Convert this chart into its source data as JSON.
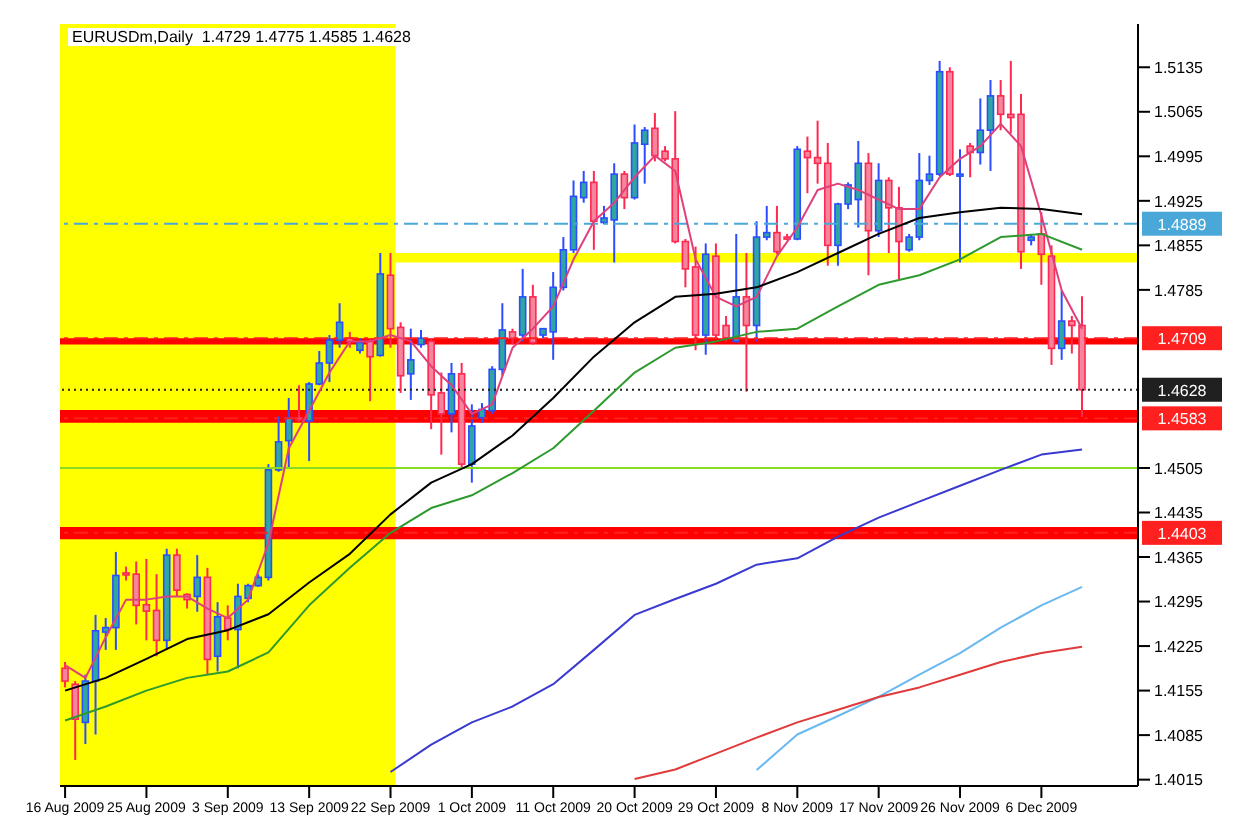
{
  "chart_data": {
    "type": "candlestick",
    "title": "EURUSDm,Daily  1.4729 1.4775 1.4585 1.4628",
    "categories": [
      "16 Aug 2009",
      null,
      null,
      null,
      null,
      null,
      null,
      null,
      "25 Aug 2009",
      null,
      null,
      null,
      null,
      null,
      null,
      null,
      "3 Sep 2009",
      null,
      null,
      null,
      null,
      null,
      null,
      null,
      "13 Sep 2009",
      null,
      null,
      null,
      null,
      null,
      null,
      null,
      "22 Sep 2009",
      null,
      null,
      null,
      null,
      null,
      null,
      null,
      "1 Oct 2009",
      null,
      null,
      null,
      null,
      null,
      null,
      null,
      "11 Oct 2009",
      null,
      null,
      null,
      null,
      null,
      null,
      null,
      "20 Oct 2009",
      null,
      null,
      null,
      null,
      null,
      null,
      null,
      "29 Oct 2009",
      null,
      null,
      null,
      null,
      null,
      null,
      null,
      "8 Nov 2009",
      null,
      null,
      null,
      null,
      null,
      null,
      null,
      "17 Nov 2009",
      null,
      null,
      null,
      null,
      null,
      null,
      null,
      "26 Nov 2009",
      null,
      null,
      null,
      null,
      null,
      null,
      null,
      "6 Dec 2009",
      null,
      null,
      null,
      null,
      null,
      null,
      null,
      null,
      null
    ],
    "ohlc": [
      [
        1.419,
        1.42,
        1.416,
        1.417
      ],
      [
        1.4165,
        1.417,
        1.4046,
        1.411
      ],
      [
        1.4105,
        1.418,
        1.4071,
        1.417
      ],
      [
        1.417,
        1.4274,
        1.4086,
        1.4249
      ],
      [
        1.4247,
        1.4269,
        1.4219,
        1.4254
      ],
      [
        1.4254,
        1.4373,
        1.4219,
        1.4336
      ],
      [
        1.434,
        1.435,
        1.4328,
        1.4338
      ],
      [
        1.4338,
        1.4358,
        1.4259,
        1.4289
      ],
      [
        1.429,
        1.4362,
        1.4234,
        1.428
      ],
      [
        1.4281,
        1.4338,
        1.4209,
        1.4234
      ],
      [
        1.4234,
        1.4378,
        1.4219,
        1.4368
      ],
      [
        1.4368,
        1.4378,
        1.4303,
        1.4313
      ],
      [
        1.4306,
        1.4308,
        1.4284,
        1.4298
      ],
      [
        1.4303,
        1.4368,
        1.4279,
        1.4333
      ],
      [
        1.4333,
        1.4348,
        1.418,
        1.4204
      ],
      [
        1.4209,
        1.4294,
        1.4185,
        1.4271
      ],
      [
        1.4269,
        1.4289,
        1.4234,
        1.4251
      ],
      [
        1.4251,
        1.4323,
        1.419,
        1.4303
      ],
      [
        1.43,
        1.4323,
        1.4294,
        1.432
      ],
      [
        1.432,
        1.4338,
        1.4318,
        1.4333
      ],
      [
        1.4333,
        1.4511,
        1.4328,
        1.4502
      ],
      [
        1.4502,
        1.4586,
        1.4499,
        1.4546
      ],
      [
        1.4548,
        1.4615,
        1.4504,
        1.4584
      ],
      [
        1.4584,
        1.4635,
        1.4576,
        1.4582
      ],
      [
        1.4579,
        1.464,
        1.4516,
        1.4637
      ],
      [
        1.4637,
        1.4689,
        1.4635,
        1.467
      ],
      [
        1.467,
        1.4714,
        1.464,
        1.4706
      ],
      [
        1.4706,
        1.4764,
        1.4694,
        1.4734
      ],
      [
        1.4709,
        1.4719,
        1.4694,
        1.4704
      ],
      [
        1.469,
        1.4709,
        1.4685,
        1.4702
      ],
      [
        1.4704,
        1.4709,
        1.461,
        1.468
      ],
      [
        1.4682,
        1.4843,
        1.468,
        1.481
      ],
      [
        1.4808,
        1.4843,
        1.4694,
        1.4724
      ],
      [
        1.4726,
        1.4734,
        1.4623,
        1.465
      ],
      [
        1.4653,
        1.4724,
        1.4612,
        1.4675
      ],
      [
        1.4699,
        1.4722,
        1.4694,
        1.4709
      ],
      [
        1.4704,
        1.4709,
        1.4566,
        1.462
      ],
      [
        1.4623,
        1.4655,
        1.4526,
        1.459
      ],
      [
        1.459,
        1.467,
        1.4561,
        1.4653
      ],
      [
        1.4653,
        1.467,
        1.4506,
        1.4511
      ],
      [
        1.4511,
        1.4605,
        1.4482,
        1.4571
      ],
      [
        1.4584,
        1.4607,
        1.4576,
        1.4597
      ],
      [
        1.4595,
        1.4665,
        1.459,
        1.466
      ],
      [
        1.466,
        1.4764,
        1.465,
        1.4722
      ],
      [
        1.4719,
        1.4724,
        1.4699,
        1.4709
      ],
      [
        1.4714,
        1.4818,
        1.4704,
        1.4774
      ],
      [
        1.4774,
        1.4793,
        1.4699,
        1.4702
      ],
      [
        1.4714,
        1.4724,
        1.4709,
        1.4724
      ],
      [
        1.4719,
        1.4813,
        1.4675,
        1.4789
      ],
      [
        1.4789,
        1.4868,
        1.4784,
        1.4848
      ],
      [
        1.4848,
        1.4957,
        1.4843,
        1.4932
      ],
      [
        1.493,
        1.4972,
        1.4922,
        1.4954
      ],
      [
        1.4954,
        1.4972,
        1.4848,
        1.4893
      ],
      [
        1.4891,
        1.4917,
        1.4888,
        1.4898
      ],
      [
        1.4895,
        1.4984,
        1.4828,
        1.4967
      ],
      [
        1.4967,
        1.4972,
        1.4912,
        1.493
      ],
      [
        1.493,
        1.5045,
        1.4927,
        1.5016
      ],
      [
        1.5014,
        1.5041,
        1.4952,
        1.5036
      ],
      [
        1.5039,
        1.5063,
        1.4987,
        1.4996
      ],
      [
        1.5003,
        1.5011,
        1.4987,
        1.4991
      ],
      [
        1.4991,
        1.5066,
        1.4858,
        1.4861
      ],
      [
        1.4861,
        1.4865,
        1.4789,
        1.4818
      ],
      [
        1.4821,
        1.4853,
        1.469,
        1.4714
      ],
      [
        1.4714,
        1.4858,
        1.4683,
        1.4841
      ],
      [
        1.4838,
        1.4858,
        1.4709,
        1.4714
      ],
      [
        1.4729,
        1.4744,
        1.4704,
        1.4709
      ],
      [
        1.4704,
        1.4873,
        1.4702,
        1.4774
      ],
      [
        1.4774,
        1.4843,
        1.4625,
        1.4729
      ],
      [
        1.4729,
        1.4893,
        1.4704,
        1.4868
      ],
      [
        1.4868,
        1.4917,
        1.4863,
        1.4875
      ],
      [
        1.4875,
        1.4917,
        1.4841,
        1.4845
      ],
      [
        1.4868,
        1.4873,
        1.4863,
        1.4866
      ],
      [
        1.4865,
        1.5011,
        1.4863,
        1.5006
      ],
      [
        1.5003,
        1.5026,
        1.4937,
        1.4993
      ],
      [
        1.4993,
        1.5051,
        1.4952,
        1.4984
      ],
      [
        1.4984,
        1.5016,
        1.4823,
        1.4855
      ],
      [
        1.4855,
        1.4922,
        1.4823,
        1.492
      ],
      [
        1.492,
        1.4954,
        1.4912,
        1.495
      ],
      [
        1.4927,
        1.5019,
        1.4883,
        1.4984
      ],
      [
        1.4984,
        1.5,
        1.4808,
        1.4878
      ],
      [
        1.4878,
        1.4984,
        1.4868,
        1.4957
      ],
      [
        1.4957,
        1.4962,
        1.4843,
        1.4914
      ],
      [
        1.4914,
        1.4947,
        1.4801,
        1.4861
      ],
      [
        1.4848,
        1.4873,
        1.4845,
        1.4868
      ],
      [
        1.4868,
        1.5,
        1.4863,
        1.4957
      ],
      [
        1.4957,
        1.4996,
        1.495,
        1.4967
      ],
      [
        1.4967,
        1.5145,
        1.4964,
        1.5128
      ],
      [
        1.5128,
        1.5135,
        1.4964,
        1.4967
      ],
      [
        1.4964,
        1.5006,
        1.4828,
        1.4967
      ],
      [
        1.5011,
        1.5016,
        1.4962,
        1.5001
      ],
      [
        1.5001,
        1.5086,
        1.4982,
        1.5036
      ],
      [
        1.5036,
        1.5115,
        1.4972,
        1.509
      ],
      [
        1.509,
        1.5115,
        1.5036,
        1.5061
      ],
      [
        1.5061,
        1.5145,
        1.5031,
        1.5056
      ],
      [
        1.5061,
        1.5093,
        1.4818,
        1.4845
      ],
      [
        1.4863,
        1.4873,
        1.4855,
        1.4868
      ],
      [
        1.4873,
        1.4907,
        1.4793,
        1.4841
      ],
      [
        1.4838,
        1.4855,
        1.4667,
        1.4693
      ],
      [
        1.4693,
        1.4784,
        1.4675,
        1.4736
      ],
      [
        1.4736,
        1.4744,
        1.4685,
        1.4729
      ],
      [
        1.4729,
        1.4775,
        1.4585,
        1.4628
      ],
      null,
      null,
      null,
      null,
      null
    ],
    "series": [
      {
        "type": "line",
        "color": "#e0407a",
        "values": [
          1.4195,
          null,
          1.4175,
          null,
          1.4239,
          null,
          1.4298,
          null,
          1.4298,
          null,
          1.4303,
          null,
          1.4303,
          null,
          1.4284,
          null,
          1.4269,
          null,
          1.4298,
          null,
          1.4387,
          null,
          1.4536,
          null,
          1.4595,
          null,
          1.4655,
          null,
          1.4704,
          null,
          1.4704,
          null,
          1.4714,
          null,
          1.4704,
          null,
          1.4665,
          null,
          1.4635,
          null,
          1.459,
          null,
          1.4605,
          null,
          1.4694,
          null,
          1.4724,
          null,
          1.4759,
          null,
          1.4833,
          null,
          1.4893,
          null,
          1.4922,
          null,
          1.4962,
          null,
          1.4996,
          null,
          1.4972,
          null,
          1.4833,
          null,
          1.4774,
          null,
          1.4759,
          null,
          1.4774,
          null,
          1.4838,
          null,
          1.4883,
          null,
          1.4942,
          null,
          1.4952,
          null,
          1.4942,
          null,
          1.4927,
          null,
          1.4912,
          null,
          1.4912,
          null,
          1.4962,
          null,
          1.4991,
          null,
          1.5011,
          null,
          1.5046,
          null,
          1.5011,
          null,
          1.4902,
          null,
          1.4784,
          null,
          1.4724,
          null,
          null,
          null,
          null,
          null
        ]
      },
      {
        "type": "line",
        "color": "#000000",
        "values": [
          1.4155,
          null,
          null,
          null,
          1.4175,
          null,
          null,
          null,
          1.4205,
          null,
          null,
          null,
          1.4236,
          null,
          null,
          null,
          1.425,
          null,
          null,
          null,
          1.4275,
          null,
          null,
          null,
          1.4325,
          null,
          null,
          null,
          1.437,
          null,
          null,
          null,
          1.4432,
          null,
          null,
          null,
          1.4482,
          null,
          null,
          null,
          1.4511,
          null,
          null,
          null,
          1.4556,
          null,
          null,
          null,
          1.4615,
          null,
          null,
          null,
          1.468,
          null,
          null,
          null,
          1.4734,
          null,
          null,
          null,
          1.4774,
          null,
          null,
          null,
          1.4779,
          null,
          null,
          null,
          1.4789,
          null,
          null,
          null,
          1.4813,
          null,
          null,
          null,
          1.4843,
          null,
          null,
          null,
          1.4873,
          null,
          null,
          null,
          1.4898,
          null,
          null,
          null,
          1.4907,
          null,
          null,
          null,
          1.4914,
          null,
          null,
          null,
          1.4912,
          null,
          null,
          null,
          1.4904,
          null,
          null,
          null,
          null,
          null
        ]
      },
      {
        "type": "line",
        "color": "#2e9a2e",
        "values": [
          1.4108,
          null,
          null,
          null,
          1.413,
          null,
          null,
          null,
          1.4155,
          null,
          null,
          null,
          1.4175,
          null,
          null,
          null,
          1.4185,
          null,
          null,
          null,
          1.4215,
          null,
          null,
          null,
          1.4289,
          null,
          null,
          null,
          1.4348,
          null,
          null,
          null,
          1.4403,
          null,
          null,
          null,
          1.4442,
          null,
          null,
          null,
          1.4462,
          null,
          null,
          null,
          1.4497,
          null,
          null,
          null,
          1.4536,
          null,
          null,
          null,
          1.4595,
          null,
          null,
          null,
          1.4655,
          null,
          null,
          null,
          1.4694,
          null,
          null,
          null,
          1.4704,
          null,
          null,
          null,
          1.4719,
          null,
          null,
          null,
          1.4724,
          null,
          null,
          null,
          1.4759,
          null,
          null,
          null,
          1.4793,
          null,
          null,
          null,
          1.4808,
          null,
          null,
          null,
          1.4833,
          null,
          null,
          null,
          1.4868,
          null,
          null,
          null,
          1.4873,
          null,
          null,
          null,
          1.4848,
          null,
          null,
          null,
          null,
          null
        ]
      },
      {
        "type": "line",
        "color": "#3a3ad0",
        "values": [
          null,
          null,
          null,
          null,
          null,
          null,
          null,
          null,
          null,
          null,
          null,
          null,
          null,
          null,
          null,
          null,
          null,
          null,
          null,
          null,
          null,
          null,
          null,
          null,
          null,
          null,
          null,
          null,
          null,
          null,
          null,
          null,
          1.4027,
          null,
          null,
          null,
          1.407,
          null,
          null,
          null,
          1.4105,
          null,
          null,
          null,
          1.413,
          null,
          null,
          null,
          1.4165,
          null,
          null,
          null,
          1.4219,
          null,
          null,
          null,
          1.4274,
          null,
          null,
          null,
          1.4299,
          null,
          null,
          null,
          1.4323,
          null,
          null,
          null,
          1.4353,
          null,
          null,
          null,
          1.4363,
          null,
          null,
          null,
          1.4397,
          null,
          null,
          null,
          1.4427,
          null,
          null,
          null,
          1.4452,
          null,
          null,
          null,
          1.4477,
          null,
          null,
          null,
          1.4502,
          null,
          null,
          null,
          1.4526,
          null,
          null,
          null,
          1.4534,
          null,
          null,
          null,
          null,
          null
        ]
      },
      {
        "type": "line",
        "color": "#6ab8f0",
        "values": [
          null,
          null,
          null,
          null,
          null,
          null,
          null,
          null,
          null,
          null,
          null,
          null,
          null,
          null,
          null,
          null,
          null,
          null,
          null,
          null,
          null,
          null,
          null,
          null,
          null,
          null,
          null,
          null,
          null,
          null,
          null,
          null,
          null,
          null,
          null,
          null,
          null,
          null,
          null,
          null,
          null,
          null,
          null,
          null,
          null,
          null,
          null,
          null,
          null,
          null,
          null,
          null,
          null,
          null,
          null,
          null,
          null,
          null,
          null,
          null,
          null,
          null,
          null,
          null,
          null,
          null,
          null,
          null,
          1.403,
          null,
          null,
          null,
          1.4086,
          null,
          null,
          null,
          1.4115,
          null,
          null,
          null,
          1.4145,
          null,
          null,
          null,
          1.418,
          null,
          null,
          null,
          1.4214,
          null,
          null,
          null,
          1.4254,
          null,
          null,
          null,
          1.4289,
          null,
          null,
          null,
          1.4318,
          null,
          null,
          null,
          null,
          null
        ]
      },
      {
        "type": "line",
        "color": "#e03a3a",
        "values": [
          null,
          null,
          null,
          null,
          null,
          null,
          null,
          null,
          null,
          null,
          null,
          null,
          null,
          null,
          null,
          null,
          null,
          null,
          null,
          null,
          null,
          null,
          null,
          null,
          null,
          null,
          null,
          null,
          null,
          null,
          null,
          null,
          null,
          null,
          null,
          null,
          null,
          null,
          null,
          null,
          null,
          null,
          null,
          null,
          null,
          null,
          null,
          null,
          null,
          null,
          null,
          null,
          null,
          null,
          null,
          null,
          1.4016,
          null,
          null,
          null,
          1.4031,
          null,
          null,
          null,
          1.4056,
          null,
          null,
          null,
          1.4081,
          null,
          null,
          null,
          1.4105,
          null,
          null,
          null,
          1.4125,
          null,
          null,
          null,
          1.4145,
          null,
          null,
          null,
          1.416,
          null,
          null,
          null,
          1.418,
          null,
          null,
          null,
          1.42,
          null,
          null,
          null,
          1.4214,
          null,
          null,
          null,
          1.4224,
          null,
          null,
          null,
          null,
          null
        ]
      }
    ],
    "ylim": [
      1.4005,
      1.5203
    ],
    "yticks": [
      1.4015,
      1.4085,
      1.4155,
      1.4225,
      1.4295,
      1.4365,
      1.4435,
      1.4505,
      1.4785,
      1.4855,
      1.4925,
      1.4995,
      1.5065,
      1.5135
    ],
    "ref_lines": [
      {
        "axis": "y",
        "value": 1.4889,
        "label": "1.4889",
        "color": "#4aa8d8",
        "line_style": "dashed"
      },
      {
        "axis": "y",
        "value": 1.4709,
        "label": "1.4709",
        "color": "#ff2020",
        "line_style": "dashed"
      },
      {
        "axis": "y",
        "value": 1.4628,
        "label": "1.4628",
        "color": "#202020",
        "line_style": "dotted"
      },
      {
        "axis": "y",
        "value": 1.4583,
        "label": "1.4583",
        "color": "#ff2020",
        "line_style": "dashed"
      },
      {
        "axis": "y",
        "value": 1.4403,
        "label": "1.4403",
        "color": "#ff2020",
        "line_style": "dashed"
      },
      {
        "axis": "y",
        "value": 1.4505,
        "color": "#88dd22",
        "line_style": "solid"
      }
    ],
    "bands": [
      {
        "axis": "x",
        "from": "16 Aug 2009",
        "to": "22 Sep 2009",
        "color": "#ffff00"
      },
      {
        "axis": "y",
        "from": 1.4828,
        "to": 1.4843,
        "color": "#ffff00"
      },
      {
        "axis": "y",
        "from": 1.4699,
        "to": 1.4709,
        "color": "#ff0000"
      },
      {
        "axis": "y",
        "from": 1.4576,
        "to": 1.4596,
        "color": "#ff0000"
      },
      {
        "axis": "y",
        "from": 1.4393,
        "to": 1.4412,
        "color": "#ff0000"
      }
    ]
  }
}
